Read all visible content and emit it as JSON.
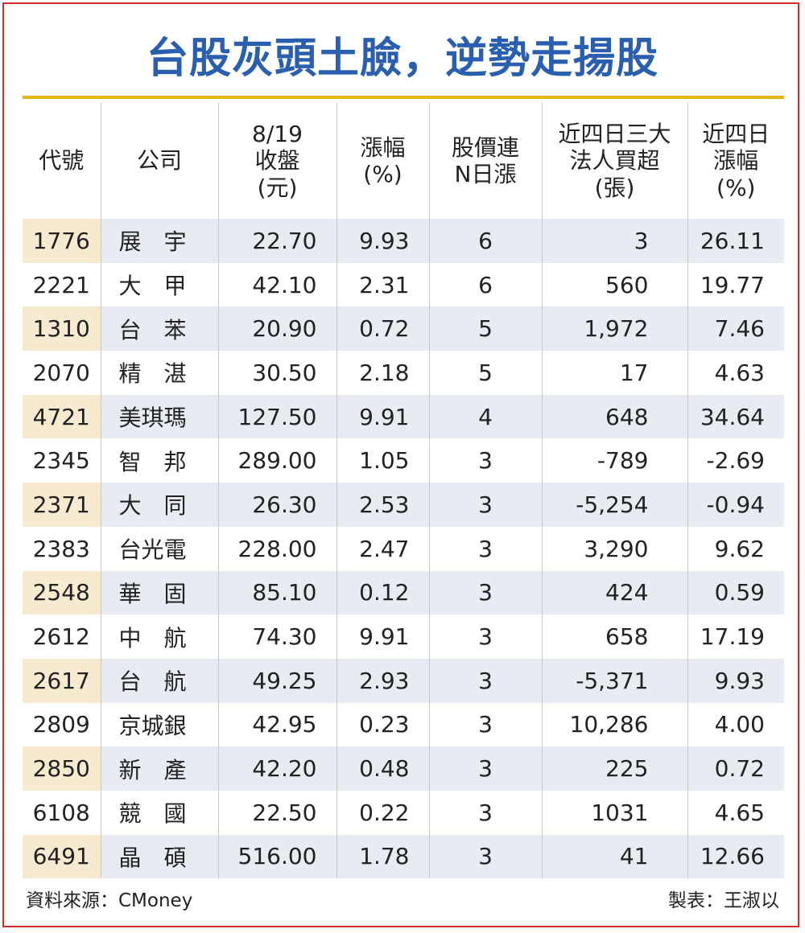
{
  "title": "台股灰頭土臉，逆勢走揚股",
  "columns": [
    "代號",
    "公司",
    "8/19\n收盤\n(元)",
    "漲幅\n(%)",
    "股價連\nN日漲",
    "近四日三大\n法人買超\n(張)",
    "近四日\n漲幅\n(%)"
  ],
  "rows": [
    [
      "1776",
      "展　宇",
      "22.70",
      "9.93",
      "6",
      "3",
      "26.11"
    ],
    [
      "2221",
      "大　甲",
      "42.10",
      "2.31",
      "6",
      "560",
      "19.77"
    ],
    [
      "1310",
      "台　苯",
      "20.90",
      "0.72",
      "5",
      "1,972",
      "7.46"
    ],
    [
      "2070",
      "精　湛",
      "30.50",
      "2.18",
      "5",
      "17",
      "4.63"
    ],
    [
      "4721",
      "美琪瑪",
      "127.50",
      "9.91",
      "4",
      "648",
      "34.64"
    ],
    [
      "2345",
      "智　邦",
      "289.00",
      "1.05",
      "3",
      "-789",
      "-2.69"
    ],
    [
      "2371",
      "大　同",
      "26.30",
      "2.53",
      "3",
      "-5,254",
      "-0.94"
    ],
    [
      "2383",
      "台光電",
      "228.00",
      "2.47",
      "3",
      "3,290",
      "9.62"
    ],
    [
      "2548",
      "華　固",
      "85.10",
      "0.12",
      "3",
      "424",
      "0.59"
    ],
    [
      "2612",
      "中　航",
      "74.30",
      "9.91",
      "3",
      "658",
      "17.19"
    ],
    [
      "2617",
      "台　航",
      "49.25",
      "2.93",
      "3",
      "-5,371",
      "9.93"
    ],
    [
      "2809",
      "京城銀",
      "42.95",
      "0.23",
      "3",
      "10,286",
      "4.00"
    ],
    [
      "2850",
      "新　產",
      "42.20",
      "0.48",
      "3",
      "225",
      "0.72"
    ],
    [
      "6108",
      "競　國",
      "22.50",
      "0.22",
      "3",
      "1031",
      "4.65"
    ],
    [
      "6491",
      "晶　碩",
      "516.00",
      "1.78",
      "3",
      "41",
      "12.66"
    ]
  ],
  "source": "資料來源：CMoney",
  "author": "製表：王淑以",
  "colors": {
    "title": "#2a5fb0",
    "gold_rule": "#e3b514",
    "band_row": "#e8ebf2",
    "band_code": "#f6ead0",
    "frame": "#d42c2c"
  }
}
